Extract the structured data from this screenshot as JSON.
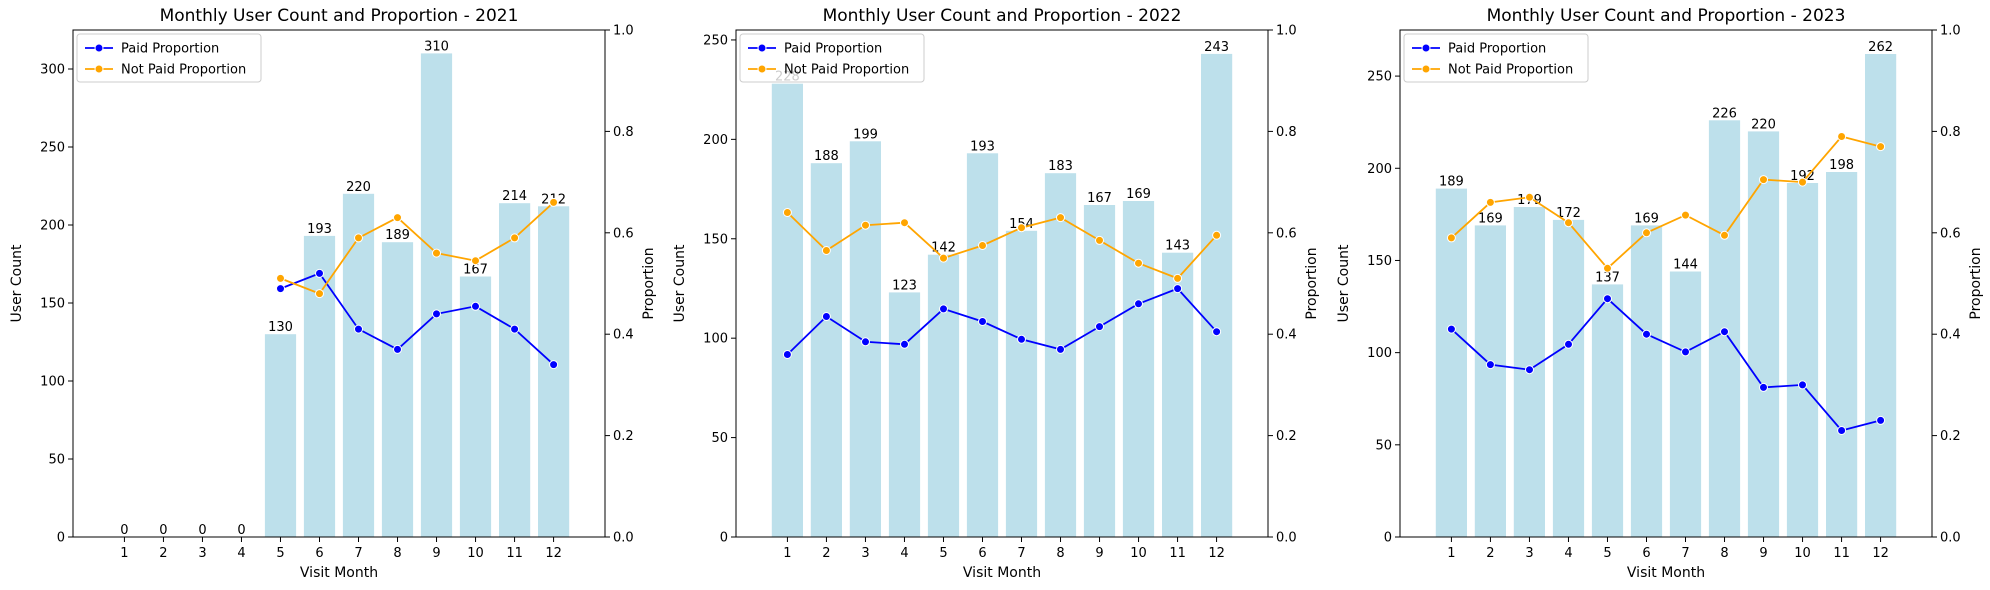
{
  "colors": {
    "bar": "#add8e6",
    "paid": "#0000ff",
    "not_paid": "#ffa500"
  },
  "chart_data": [
    {
      "type": "bar",
      "title": "Monthly User Count and Proportion - 2021",
      "xlabel": "Visit Month",
      "ylabel": "User Count",
      "ylabel_right": "Proportion",
      "categories": [
        "1",
        "2",
        "3",
        "4",
        "5",
        "6",
        "7",
        "8",
        "9",
        "10",
        "11",
        "12"
      ],
      "values": [
        0,
        0,
        0,
        0,
        130,
        193,
        220,
        189,
        310,
        167,
        214,
        212
      ],
      "bar_labels": [
        "0",
        "0",
        "0",
        "0",
        "130",
        "193",
        "220",
        "189",
        "310",
        "167",
        "214",
        "212"
      ],
      "ylim": [
        0,
        325
      ],
      "yticks": [
        0,
        50,
        100,
        150,
        200,
        250,
        300
      ],
      "ytick_labels": [
        "0",
        "50",
        "100",
        "150",
        "200",
        "250",
        "300"
      ],
      "y2lim": [
        0,
        1.0
      ],
      "y2ticks": [
        0,
        0.2,
        0.4,
        0.6,
        0.8,
        1.0
      ],
      "y2tick_labels": [
        "0.0",
        "0.2",
        "0.4",
        "0.6",
        "0.8",
        "1.0"
      ],
      "legend": {
        "position": "upper-left",
        "entries": [
          "Paid Proportion",
          "Not Paid Proportion"
        ]
      },
      "series": [
        {
          "name": "Paid Proportion",
          "axis": "right",
          "type": "line",
          "values": [
            null,
            null,
            null,
            null,
            0.49,
            0.52,
            0.41,
            0.37,
            0.44,
            0.455,
            0.41,
            0.34
          ]
        },
        {
          "name": "Not Paid Proportion",
          "axis": "right",
          "type": "line",
          "values": [
            null,
            null,
            null,
            null,
            0.51,
            0.48,
            0.59,
            0.63,
            0.56,
            0.545,
            0.59,
            0.66
          ]
        }
      ]
    },
    {
      "type": "bar",
      "title": "Monthly User Count and Proportion - 2022",
      "xlabel": "Visit Month",
      "ylabel": "User Count",
      "ylabel_right": "Proportion",
      "categories": [
        "1",
        "2",
        "3",
        "4",
        "5",
        "6",
        "7",
        "8",
        "9",
        "10",
        "11",
        "12"
      ],
      "values": [
        228,
        188,
        199,
        123,
        142,
        193,
        154,
        183,
        167,
        169,
        143,
        243
      ],
      "bar_labels": [
        "228",
        "188",
        "199",
        "123",
        "142",
        "193",
        "154",
        "183",
        "167",
        "169",
        "143",
        "243"
      ],
      "ylim": [
        0,
        255
      ],
      "yticks": [
        0,
        50,
        100,
        150,
        200,
        250
      ],
      "ytick_labels": [
        "0",
        "50",
        "100",
        "150",
        "200",
        "250"
      ],
      "y2lim": [
        0,
        1.0
      ],
      "y2ticks": [
        0,
        0.2,
        0.4,
        0.6,
        0.8,
        1.0
      ],
      "y2tick_labels": [
        "0.0",
        "0.2",
        "0.4",
        "0.6",
        "0.8",
        "1.0"
      ],
      "legend": {
        "position": "upper-left",
        "entries": [
          "Paid Proportion",
          "Not Paid Proportion"
        ]
      },
      "series": [
        {
          "name": "Paid Proportion",
          "axis": "right",
          "type": "line",
          "values": [
            0.36,
            0.435,
            0.385,
            0.38,
            0.45,
            0.425,
            0.39,
            0.37,
            0.415,
            0.46,
            0.49,
            0.405
          ]
        },
        {
          "name": "Not Paid Proportion",
          "axis": "right",
          "type": "line",
          "values": [
            0.64,
            0.565,
            0.615,
            0.62,
            0.55,
            0.575,
            0.61,
            0.63,
            0.585,
            0.54,
            0.51,
            0.595
          ]
        }
      ]
    },
    {
      "type": "bar",
      "title": "Monthly User Count and Proportion - 2023",
      "xlabel": "Visit Month",
      "ylabel": "User Count",
      "ylabel_right": "Proportion",
      "categories": [
        "1",
        "2",
        "3",
        "4",
        "5",
        "6",
        "7",
        "8",
        "9",
        "10",
        "11",
        "12"
      ],
      "values": [
        189,
        169,
        179,
        172,
        137,
        169,
        144,
        226,
        220,
        192,
        198,
        262
      ],
      "bar_labels": [
        "189",
        "169",
        "179",
        "172",
        "137",
        "169",
        "144",
        "226",
        "220",
        "192",
        "198",
        "262"
      ],
      "ylim": [
        0,
        275
      ],
      "yticks": [
        0,
        50,
        100,
        150,
        200,
        250
      ],
      "ytick_labels": [
        "0",
        "50",
        "100",
        "150",
        "200",
        "250"
      ],
      "y2lim": [
        0,
        1.0
      ],
      "y2ticks": [
        0,
        0.2,
        0.4,
        0.6,
        0.8,
        1.0
      ],
      "y2tick_labels": [
        "0.0",
        "0.2",
        "0.4",
        "0.6",
        "0.8",
        "1.0"
      ],
      "legend": {
        "position": "upper-left",
        "entries": [
          "Paid Proportion",
          "Not Paid Proportion"
        ]
      },
      "series": [
        {
          "name": "Paid Proportion",
          "axis": "right",
          "type": "line",
          "values": [
            0.41,
            0.34,
            0.33,
            0.38,
            0.47,
            0.4,
            0.365,
            0.405,
            0.295,
            0.3,
            0.21,
            0.23
          ]
        },
        {
          "name": "Not Paid Proportion",
          "axis": "right",
          "type": "line",
          "values": [
            0.59,
            0.66,
            0.67,
            0.62,
            0.53,
            0.6,
            0.635,
            0.595,
            0.705,
            0.7,
            0.79,
            0.77
          ]
        }
      ]
    }
  ]
}
